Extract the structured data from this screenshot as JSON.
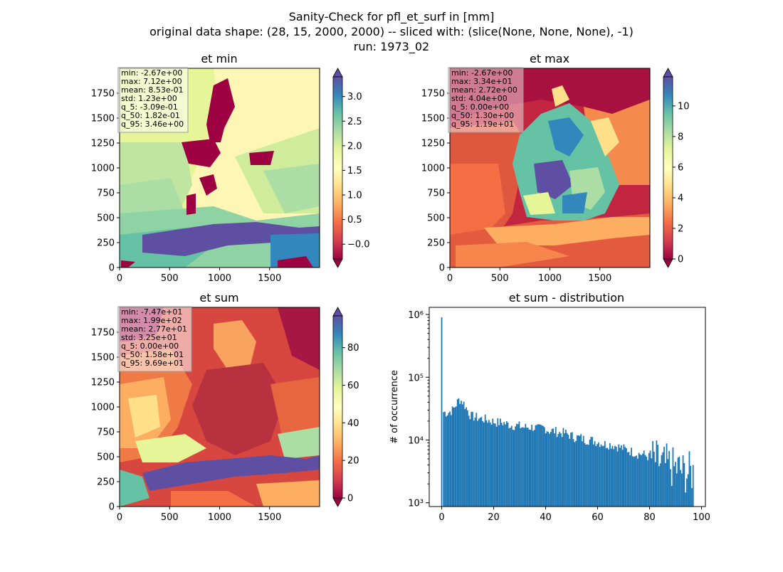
{
  "title": {
    "line1": "Sanity-Check for pfl_et_surf in [mm]",
    "line2": "original data shape: (28, 15, 2000, 2000) -- sliced with: (slice(None, None, None), -1)",
    "line3": "run: 1973_02"
  },
  "colors": {
    "spectral": [
      "#9e0142",
      "#d53e4f",
      "#f46d43",
      "#fdae61",
      "#fee08b",
      "#ffffbf",
      "#e6f598",
      "#abdda4",
      "#66c2a5",
      "#3288bd",
      "#5e4fa2"
    ],
    "histogram_bar": "#1f77b4",
    "stats_box": "#ffffff"
  },
  "chart_data": [
    {
      "type": "heatmap",
      "title": "et min",
      "xticks": [
        "0",
        "500",
        "1000",
        "1500"
      ],
      "yticks": [
        "0",
        "250",
        "500",
        "750",
        "1000",
        "1250",
        "1500",
        "1750"
      ],
      "xlim": [
        0,
        2000
      ],
      "ylim": [
        0,
        2000
      ],
      "colorbar": {
        "vmin": -0.3,
        "vmax": 3.4,
        "ticks": [
          -0.0,
          0.5,
          1.0,
          1.5,
          2.0,
          2.5,
          3.0
        ],
        "tick_labels": [
          "−0.0",
          "0.5",
          "1.0",
          "1.5",
          "2.0",
          "2.5",
          "3.0"
        ],
        "extend": "both"
      },
      "stats": [
        "min: -2.67e+00",
        "max: 7.12e+00",
        "mean: 8.53e-01",
        "std: 1.23e+00",
        "q_5: -3.09e-01",
        "q_50: 1.82e-01",
        "q_95: 3.46e+00"
      ]
    },
    {
      "type": "heatmap",
      "title": "et max",
      "xticks": [
        "0",
        "500",
        "1000",
        "1500"
      ],
      "yticks": [
        "0",
        "250",
        "500",
        "750",
        "1000",
        "1250",
        "1500",
        "1750"
      ],
      "xlim": [
        0,
        2000
      ],
      "ylim": [
        0,
        2000
      ],
      "colorbar": {
        "vmin": 0,
        "vmax": 11.9,
        "ticks": [
          0,
          2,
          4,
          6,
          8,
          10
        ],
        "tick_labels": [
          "0",
          "2",
          "4",
          "6",
          "8",
          "10"
        ],
        "extend": "both"
      },
      "stats": [
        "min: -2.67e+00",
        "max: 3.34e+01",
        "mean: 2.72e+00",
        "std: 4.04e+00",
        "q_5: 0.00e+00",
        "q_50: 1.30e+00",
        "q_95: 1.19e+01"
      ]
    },
    {
      "type": "heatmap",
      "title": "et sum",
      "xticks": [
        "0",
        "500",
        "1000",
        "1500"
      ],
      "yticks": [
        "0",
        "250",
        "500",
        "750",
        "1000",
        "1250",
        "1500",
        "1750"
      ],
      "xlim": [
        0,
        2000
      ],
      "ylim": [
        0,
        2000
      ],
      "colorbar": {
        "vmin": 0,
        "vmax": 96.9,
        "ticks": [
          0,
          20,
          40,
          60,
          80
        ],
        "tick_labels": [
          "0",
          "20",
          "40",
          "60",
          "80"
        ],
        "extend": "both"
      },
      "stats": [
        "min: -7.47e+01",
        "max: 1.99e+02",
        "mean: 2.77e+01",
        "std: 3.25e+01",
        "q_5: 0.00e+00",
        "q_50: 1.58e+01",
        "q_95: 9.69e+01"
      ]
    },
    {
      "type": "bar",
      "title": "et sum - distribution",
      "ylabel": "# of occurrence",
      "xlabel": "",
      "yscale": "log",
      "xlim": [
        -4.8,
        101.5
      ],
      "ylim": [
        870,
        1300000
      ],
      "xticks": [
        "0",
        "20",
        "40",
        "60",
        "80",
        "100"
      ],
      "ytick_labels": [
        "10³",
        "10⁴",
        "10⁵",
        "10⁶"
      ],
      "bin_width": 0.485,
      "spike": {
        "x": 0,
        "value": 900000
      },
      "bins": [
        [
          0.5,
          28000
        ],
        [
          2,
          27000
        ],
        [
          4,
          30000
        ],
        [
          5.5,
          38000
        ],
        [
          6.5,
          45000
        ],
        [
          8,
          40000
        ],
        [
          9.5,
          31000
        ],
        [
          11,
          24000
        ],
        [
          13,
          23000
        ],
        [
          15,
          22000
        ],
        [
          17,
          21000
        ],
        [
          19,
          20000
        ],
        [
          21,
          19000
        ],
        [
          23,
          19000
        ],
        [
          25,
          18000
        ],
        [
          27,
          17000
        ],
        [
          29,
          17000
        ],
        [
          31,
          16000
        ],
        [
          33,
          16000
        ],
        [
          35,
          16000
        ],
        [
          37,
          15000
        ],
        [
          39,
          16000
        ],
        [
          41,
          14000
        ],
        [
          43,
          14000
        ],
        [
          45,
          13000
        ],
        [
          47,
          13000
        ],
        [
          49,
          12000
        ],
        [
          51,
          11000
        ],
        [
          53,
          11000
        ],
        [
          55,
          10000
        ],
        [
          57,
          10000
        ],
        [
          59,
          9500
        ],
        [
          61,
          9000
        ],
        [
          63,
          8500
        ],
        [
          65,
          8500
        ],
        [
          67,
          8000
        ],
        [
          69,
          7500
        ],
        [
          71,
          7000
        ],
        [
          73,
          6500
        ],
        [
          75,
          6000
        ],
        [
          77,
          6000
        ],
        [
          79,
          5500
        ],
        [
          81,
          5000
        ],
        [
          83,
          4500
        ],
        [
          85,
          4000
        ],
        [
          87,
          4000
        ],
        [
          89,
          3500
        ],
        [
          91,
          3500
        ],
        [
          93,
          3000
        ],
        [
          95,
          3000
        ],
        [
          96.5,
          3000
        ]
      ]
    }
  ]
}
